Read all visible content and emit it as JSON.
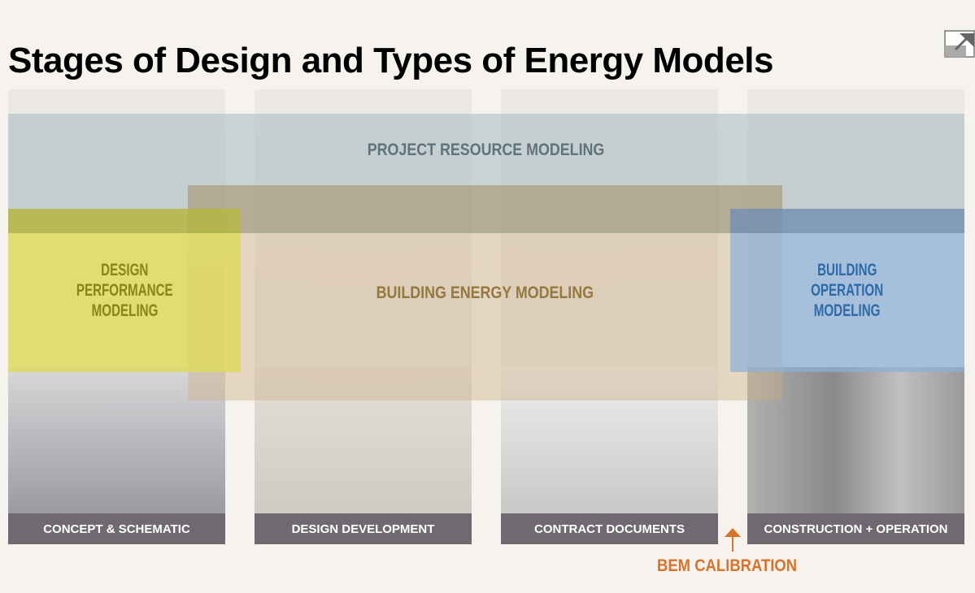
{
  "title": "Stages of Design and Types of Energy Models",
  "expand_icon": "expand-arrow-icon",
  "stages": [
    {
      "label": "CONCEPT & SCHEMATIC"
    },
    {
      "label": "DESIGN DEVELOPMENT"
    },
    {
      "label": "CONTRACT DOCUMENTS"
    },
    {
      "label": "CONSTRUCTION + OPERATION"
    }
  ],
  "models": {
    "project_resource": "PROJECT RESOURCE MODELING",
    "building_energy": "BUILDING ENERGY MODELING",
    "design_performance": [
      "DESIGN",
      "PERFORMANCE",
      "MODELING"
    ],
    "building_operation": [
      "BUILDING",
      "OPERATION",
      "MODELING"
    ]
  },
  "calibration": {
    "label": "BEM CALIBRATION",
    "icon": "arrow-up-icon"
  },
  "colors": {
    "project_resource": "#60727a",
    "building_energy": "#94783f",
    "design_performance": "#8c8414",
    "building_operation": "#2e6aa8",
    "calibration": "#d9722a",
    "stage_label_bg": "#6f6a6f"
  }
}
